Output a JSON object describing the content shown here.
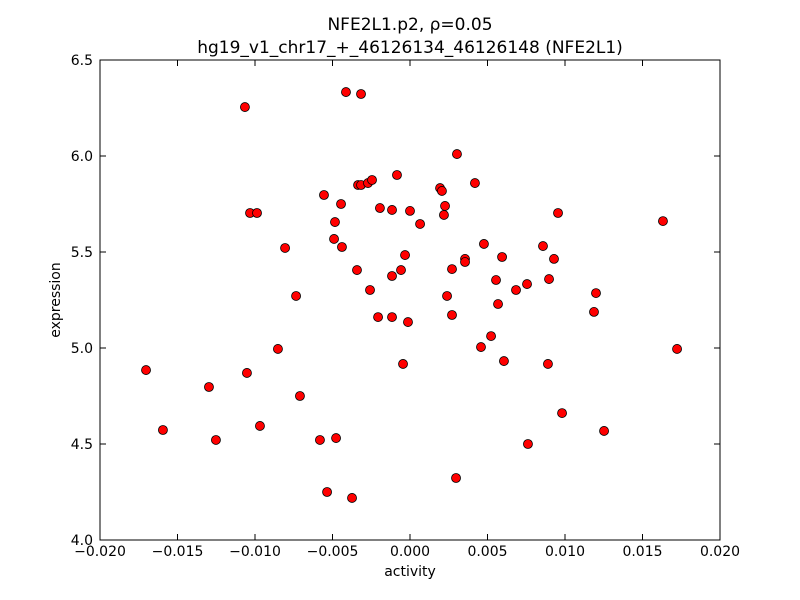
{
  "chart_data": {
    "type": "scatter",
    "title": "NFE2L1.p2, ρ=0.05",
    "subtitle": "hg19_v1_chr17_+_46126134_46126148 (NFE2L1)",
    "x_label": "activity",
    "y_label": "expression",
    "xlim": [
      -0.02,
      0.02
    ],
    "xticks": [
      {
        "value": -0.02,
        "label": "−0.020"
      },
      {
        "value": -0.015,
        "label": "−0.015"
      },
      {
        "value": -0.01,
        "label": "−0.010"
      },
      {
        "value": -0.005,
        "label": "−0.005"
      },
      {
        "value": 0,
        "label": "0.000"
      },
      {
        "value": 0.005,
        "label": "0.005"
      },
      {
        "value": 0.01,
        "label": "0.010"
      },
      {
        "value": 0.015,
        "label": "0.015"
      },
      {
        "value": 0.02,
        "label": "0.020"
      }
    ],
    "ylim": [
      4.0,
      6.5
    ],
    "yticks": [
      {
        "value": 4.0,
        "label": "4.0"
      },
      {
        "value": 4.5,
        "label": "4.5"
      },
      {
        "value": 5.0,
        "label": "5.0"
      },
      {
        "value": 5.5,
        "label": "5.5"
      },
      {
        "value": 6.0,
        "label": "6.0"
      },
      {
        "value": 6.5,
        "label": "6.5"
      }
    ],
    "color": "#ff0000",
    "x": [
      -0.01065,
      -0.00413,
      -0.00316,
      0.00303,
      -0.01032,
      -0.00987,
      -0.00555,
      -0.00445,
      -0.00335,
      -0.00316,
      -0.00271,
      -0.00245,
      -0.00084,
      -0.00194,
      -0.00116,
      0.0,
      0.00065,
      0.00194,
      0.00206,
      0.00226,
      0.00219,
      0.00419,
      -0.00484,
      -0.0049,
      -0.00439,
      -0.00806,
      -0.00342,
      -0.00032,
      -0.00058,
      -0.00116,
      -0.00258,
      -0.00735,
      -0.00206,
      -0.00116,
      -0.00013,
      0.00477,
      0.00594,
      0.00355,
      0.00355,
      0.00271,
      0.00555,
      0.00239,
      0.00568,
      0.00684,
      0.00755,
      0.00858,
      0.00929,
      0.00897,
      0.00955,
      0.01632,
      0.012,
      0.01187,
      0.00271,
      0.00523,
      0.00458,
      0.00606,
      0.0089,
      -0.00045,
      -0.00852,
      0.01723,
      -0.01703,
      -0.01297,
      -0.01052,
      -0.0071,
      0.00981,
      -0.01594,
      -0.00968,
      -0.01252,
      -0.00581,
      -0.00477,
      0.01252,
      0.00761,
      0.00297,
      -0.00535,
      -0.00374
    ],
    "values": [
      6.255,
      6.333,
      6.323,
      6.01,
      5.703,
      5.703,
      5.797,
      5.75,
      5.849,
      5.849,
      5.859,
      5.875,
      5.901,
      5.729,
      5.719,
      5.714,
      5.646,
      5.833,
      5.818,
      5.74,
      5.693,
      5.859,
      5.656,
      5.568,
      5.526,
      5.521,
      5.406,
      5.484,
      5.406,
      5.375,
      5.302,
      5.271,
      5.161,
      5.161,
      5.135,
      5.542,
      5.474,
      5.464,
      5.448,
      5.411,
      5.354,
      5.271,
      5.229,
      5.302,
      5.333,
      5.531,
      5.464,
      5.359,
      5.703,
      5.661,
      5.286,
      5.188,
      5.172,
      5.062,
      5.005,
      4.932,
      4.917,
      4.917,
      4.995,
      4.995,
      4.885,
      4.797,
      4.87,
      4.75,
      4.661,
      4.573,
      4.594,
      4.521,
      4.521,
      4.531,
      4.568,
      4.5,
      4.323,
      4.25,
      4.219
    ]
  }
}
